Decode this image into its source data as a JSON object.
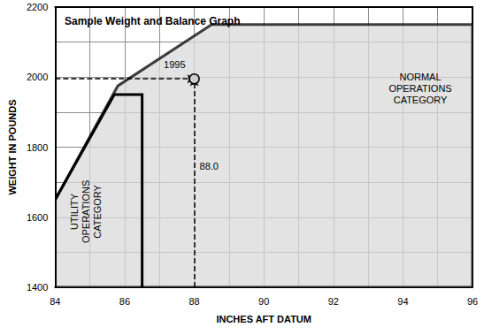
{
  "chart_data": {
    "type": "line",
    "title": "Sample Weight and Balance Graph",
    "x_label": "INCHES AFT DATUM",
    "y_label": "WEIGHT IN POUNDS",
    "xlim": [
      84,
      96
    ],
    "xticks": [
      84,
      86,
      88,
      90,
      92,
      94,
      96
    ],
    "ylim": [
      1400,
      2200
    ],
    "yticks": [
      1400,
      1600,
      1800,
      2000,
      2200
    ],
    "grid": true,
    "series": [
      {
        "name": "NORMAL OPERATIONS CATEGORY",
        "type": "area",
        "color": "#d9d9d9",
        "line_style": "solid",
        "x": [
          84,
          84,
          85.8,
          88.5,
          96,
          96
        ],
        "values": [
          1400,
          1650,
          1975,
          2150,
          2150,
          1400
        ]
      },
      {
        "name": "UTILITY OPERATIONS CATEGORY",
        "type": "line",
        "color": "#000000",
        "line_style": "solid",
        "x": [
          84,
          84,
          85.7,
          86.5,
          86.5
        ],
        "values": [
          1400,
          1650,
          1950,
          1950,
          1400
        ]
      },
      {
        "type": "scatter",
        "color": "#cccccc",
        "marker": "circle",
        "line_style": "dashed",
        "x": [
          88.0
        ],
        "values": [
          1995
        ],
        "x_labels": [
          "88.0"
        ],
        "value_labels": [
          "1995"
        ]
      }
    ]
  }
}
